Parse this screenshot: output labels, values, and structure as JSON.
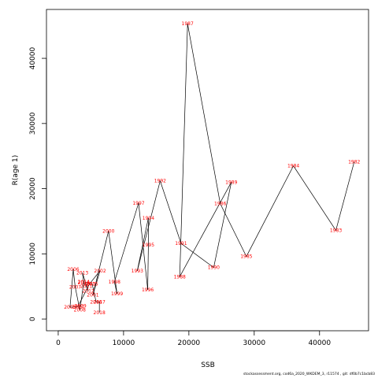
{
  "chart_data": {
    "type": "line",
    "xlabel": "SSB",
    "ylabel": "R(age 1)",
    "xlim": [
      -1800,
      47500
    ],
    "ylim": [
      -1800,
      47500
    ],
    "x_ticks": [
      0,
      10000,
      20000,
      30000,
      40000
    ],
    "y_ticks": [
      0,
      10000,
      20000,
      30000,
      40000
    ],
    "grid": false,
    "line_color": "#000000",
    "label_color": "#ff0000",
    "points": [
      {
        "year": "1982",
        "x": 45300,
        "y": 24100
      },
      {
        "year": "1983",
        "x": 42500,
        "y": 13600
      },
      {
        "year": "1984",
        "x": 36000,
        "y": 23500
      },
      {
        "year": "1985",
        "x": 28800,
        "y": 9600
      },
      {
        "year": "1986",
        "x": 24800,
        "y": 17700
      },
      {
        "year": "1987",
        "x": 19800,
        "y": 45300
      },
      {
        "year": "1988",
        "x": 18600,
        "y": 6500
      },
      {
        "year": "1989",
        "x": 26500,
        "y": 21000
      },
      {
        "year": "1990",
        "x": 23800,
        "y": 7900
      },
      {
        "year": "1991",
        "x": 18800,
        "y": 11600
      },
      {
        "year": "1992",
        "x": 15600,
        "y": 21200
      },
      {
        "year": "1993",
        "x": 12100,
        "y": 7400
      },
      {
        "year": "1994",
        "x": 13800,
        "y": 15500
      },
      {
        "year": "1995",
        "x": 13800,
        "y": 11400
      },
      {
        "year": "1996",
        "x": 13700,
        "y": 4500
      },
      {
        "year": "1997",
        "x": 12300,
        "y": 17800
      },
      {
        "year": "1998",
        "x": 8600,
        "y": 5700
      },
      {
        "year": "1999",
        "x": 9000,
        "y": 3900
      },
      {
        "year": "2000",
        "x": 7700,
        "y": 13500
      },
      {
        "year": "2001",
        "x": 5300,
        "y": 3700
      },
      {
        "year": "2002",
        "x": 6400,
        "y": 7400
      },
      {
        "year": "2003",
        "x": 4800,
        "y": 5400
      },
      {
        "year": "2004",
        "x": 3000,
        "y": 1900
      },
      {
        "year": "2005",
        "x": 1800,
        "y": 1800
      },
      {
        "year": "2006",
        "x": 2300,
        "y": 7600
      },
      {
        "year": "2007",
        "x": 2600,
        "y": 4900
      },
      {
        "year": "2008",
        "x": 3300,
        "y": 1400
      },
      {
        "year": "2009",
        "x": 3400,
        "y": 2000
      },
      {
        "year": "2010",
        "x": 3900,
        "y": 5600
      },
      {
        "year": "2011",
        "x": 4300,
        "y": 5000
      },
      {
        "year": "2012",
        "x": 4600,
        "y": 4300
      },
      {
        "year": "2013",
        "x": 3700,
        "y": 7100
      },
      {
        "year": "2014",
        "x": 3900,
        "y": 5700
      },
      {
        "year": "2015",
        "x": 5200,
        "y": 5400
      },
      {
        "year": "2016",
        "x": 5800,
        "y": 2600
      },
      {
        "year": "2017",
        "x": 6300,
        "y": 2600
      },
      {
        "year": "2018",
        "x": 6300,
        "y": 1000
      }
    ]
  },
  "footer": "stockassessment.org,  cod6a_2020_WKDEM_3,  r11574 ,  git: df0b7c1bcb83"
}
